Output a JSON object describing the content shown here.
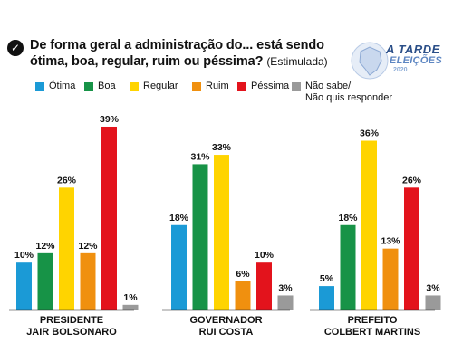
{
  "header": {
    "question": "De forma geral a administração do... está sendo ótima, boa, regular, ruim ou péssima?",
    "note": "(Estimulada)",
    "check_icon": "check-circle-icon"
  },
  "logo": {
    "line1": "A TARDE",
    "line2": "ELEIÇÕES",
    "line3": "2020",
    "icon": "brazil-map-icon",
    "color": "#2b4f88"
  },
  "legend": [
    {
      "label": "Ótima",
      "color": "#1b9ad6"
    },
    {
      "label": "Boa",
      "color": "#179347"
    },
    {
      "label": "Regular",
      "color": "#ffd400"
    },
    {
      "label": "Ruim",
      "color": "#f0900f"
    },
    {
      "label": "Péssima",
      "color": "#e3131c"
    },
    {
      "label": "Não sabe/\nNão quis responder",
      "color": "#9a9a9a"
    }
  ],
  "chart_data": {
    "type": "bar",
    "title": "De forma geral a administração do... está sendo ótima, boa, regular, ruim ou péssima? (Estimulada)",
    "categories": [
      "Ótima",
      "Boa",
      "Regular",
      "Ruim",
      "Péssima",
      "Não sabe/Não quis responder"
    ],
    "unit": "%",
    "groups": [
      {
        "label_line1": "PRESIDENTE",
        "label_line2": "JAIR BOLSONARO",
        "values": [
          10,
          12,
          26,
          12,
          39,
          1
        ]
      },
      {
        "label_line1": "GOVERNADOR",
        "label_line2": "RUI COSTA",
        "values": [
          18,
          31,
          33,
          6,
          10,
          3
        ]
      },
      {
        "label_line1": "PREFEITO",
        "label_line2": "COLBERT MARTINS",
        "values": [
          5,
          18,
          36,
          13,
          26,
          3
        ]
      }
    ],
    "ylim": [
      0,
      40
    ],
    "grid": false
  }
}
